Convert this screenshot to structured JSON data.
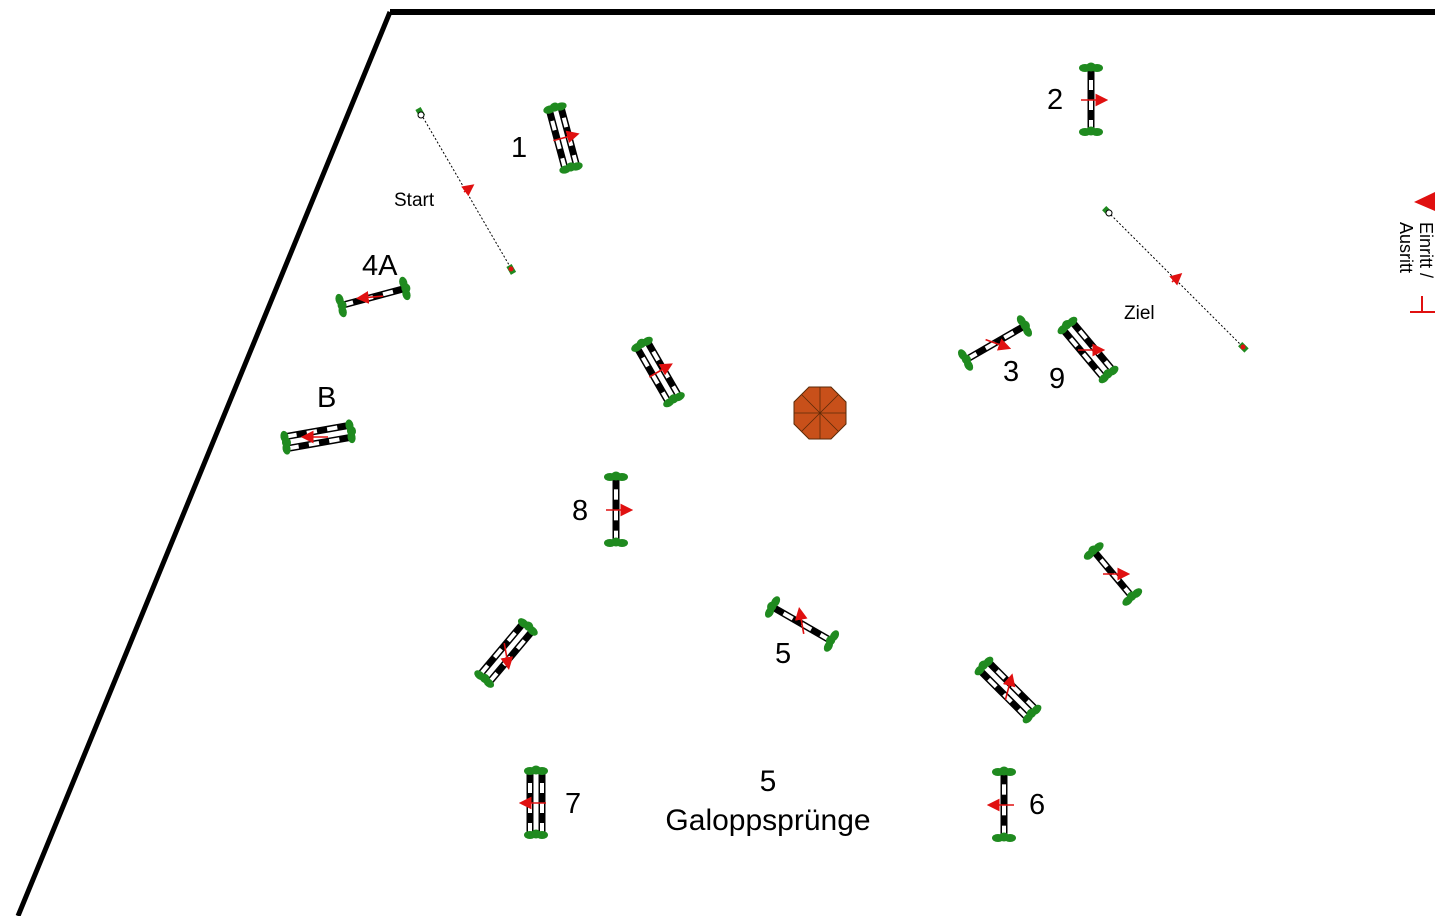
{
  "labels": {
    "start": "Start",
    "ziel": "Ziel",
    "entrance_line1": "Einritt /",
    "entrance_line2": "Ausritt",
    "strides_count": "5",
    "strides_word": "Galoppsprünge"
  },
  "obstacles": [
    {
      "label": "1",
      "kind": "oxer"
    },
    {
      "label": "2",
      "kind": "vertical"
    },
    {
      "label": "3",
      "kind": "vertical"
    },
    {
      "label": "4A",
      "kind": "vertical"
    },
    {
      "label": "B",
      "kind": "oxer"
    },
    {
      "label": "5",
      "kind": "vertical"
    },
    {
      "label": "6",
      "kind": "vertical"
    },
    {
      "label": "7",
      "kind": "oxer"
    },
    {
      "label": "8",
      "kind": "vertical"
    },
    {
      "label": "9",
      "kind": "oxer"
    },
    {
      "label": "",
      "kind": "oxer"
    },
    {
      "label": "",
      "kind": "vertical"
    },
    {
      "label": "",
      "kind": "oxer"
    },
    {
      "label": "",
      "kind": "oxer"
    }
  ],
  "colors": {
    "arena_border": "#000000",
    "shrub": "#1f8a1f",
    "arrow": "#e01010",
    "pole_dark": "#000000",
    "pole_light": "#ffffff",
    "decoration": "#c8501a"
  },
  "icons": {
    "decoration": "octagon-flower-bed-icon",
    "entrance": "triangle-marker-icon",
    "gate": "t-bar-icon"
  }
}
